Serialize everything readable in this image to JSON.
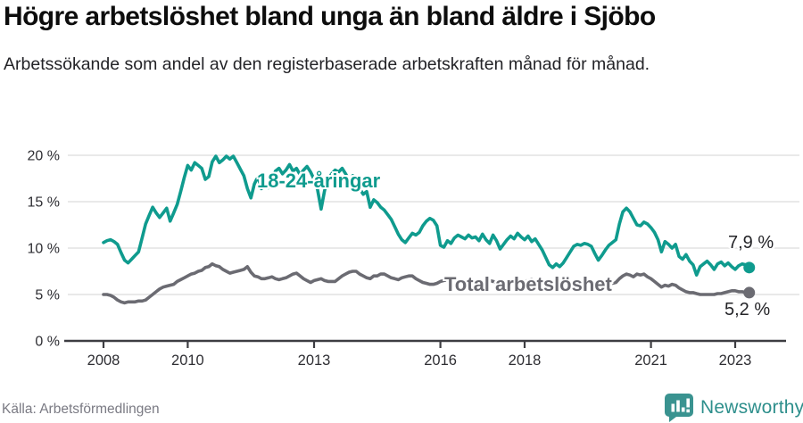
{
  "header": {
    "title": "Högre arbetslöshet bland unga än bland äldre i Sjöbo",
    "subtitle": "Arbetssökande som andel av den registerbaserade arbetskraften månad för månad."
  },
  "footer": {
    "source": "Källa: Arbetsförmedlingen",
    "brand": "Newsworthy"
  },
  "colors": {
    "accent_teal": "#0f9b8e",
    "series_gray": "#6b6b72",
    "brand_teal": "#2e8f8c",
    "grid": "#dcdcdc",
    "axis": "#3d3d42",
    "axis_text": "#2e2e33",
    "end_label_text": "#242428"
  },
  "chart_data": {
    "type": "line",
    "frequency": "monthly",
    "start": "2008-01",
    "end": "2023-05",
    "x_tick_years": [
      2008,
      2010,
      2013,
      2016,
      2018,
      2021,
      2023
    ],
    "x_tick_labels": [
      "2008",
      "2010",
      "2013",
      "2016",
      "2018",
      "2021",
      "2023"
    ],
    "y_ticks": [
      0,
      5,
      10,
      15,
      20
    ],
    "y_tick_labels": [
      "0 %",
      "5 %",
      "10 %",
      "15 %",
      "20 %"
    ],
    "ylim": [
      0,
      21
    ],
    "grid": true,
    "series": [
      {
        "name": "18-24-åringar",
        "color": "#0f9b8e",
        "end_label": "7,9 %",
        "end_value": 7.9,
        "values": [
          10.6,
          10.8,
          10.9,
          10.7,
          10.4,
          9.5,
          8.7,
          8.4,
          8.8,
          9.2,
          9.6,
          11.1,
          12.6,
          13.5,
          14.4,
          13.8,
          13.3,
          13.8,
          14.3,
          12.9,
          13.8,
          14.7,
          16.1,
          17.6,
          18.9,
          18.4,
          19.2,
          18.9,
          18.6,
          17.4,
          17.7,
          19.3,
          19.9,
          19.2,
          19.5,
          19.9,
          19.6,
          19.9,
          19.2,
          18.5,
          17.8,
          16.4,
          15.4,
          16.9,
          17.7,
          16.4,
          17.3,
          16.5,
          17.3,
          18.3,
          18.6,
          18.0,
          18.4,
          19.0,
          18.3,
          18.6,
          17.9,
          18.4,
          18.8,
          18.2,
          17.4,
          16.3,
          14.2,
          16.2,
          17.4,
          18.0,
          18.4,
          18.2,
          18.6,
          18.0,
          17.3,
          17.8,
          17.2,
          16.4,
          15.8,
          16.1,
          14.4,
          15.2,
          14.9,
          14.4,
          14.1,
          13.6,
          13.1,
          12.3,
          11.5,
          10.9,
          10.6,
          11.1,
          11.6,
          11.4,
          11.7,
          12.4,
          12.9,
          13.2,
          13.0,
          12.4,
          10.3,
          10.1,
          10.8,
          10.5,
          11.1,
          11.4,
          11.2,
          11.0,
          11.4,
          11.1,
          11.2,
          10.8,
          11.5,
          10.9,
          10.5,
          11.4,
          10.8,
          9.9,
          10.4,
          10.9,
          11.3,
          11.0,
          11.6,
          11.2,
          10.9,
          11.3,
          10.7,
          11.0,
          10.4,
          9.8,
          9.0,
          8.2,
          7.9,
          8.3,
          8.0,
          8.4,
          9.0,
          9.6,
          10.2,
          10.4,
          10.3,
          10.5,
          10.4,
          10.2,
          9.4,
          8.7,
          9.2,
          9.8,
          10.3,
          10.6,
          10.9,
          12.6,
          13.9,
          14.3,
          13.9,
          13.2,
          12.5,
          12.4,
          12.8,
          12.6,
          12.2,
          11.7,
          10.9,
          9.6,
          10.7,
          10.4,
          10.0,
          10.4,
          9.1,
          8.8,
          9.3,
          8.6,
          8.2,
          7.1,
          8.0,
          8.3,
          8.6,
          8.2,
          7.7,
          8.3,
          8.5,
          8.1,
          8.4,
          8.0,
          7.7,
          8.1,
          8.3,
          8.2,
          7.9
        ]
      },
      {
        "name": "Total arbetslöshet",
        "color": "#6b6b72",
        "end_label": "5,2 %",
        "end_value": 5.2,
        "values": [
          5.0,
          5.0,
          4.9,
          4.7,
          4.4,
          4.2,
          4.1,
          4.2,
          4.2,
          4.2,
          4.3,
          4.3,
          4.4,
          4.7,
          5.0,
          5.3,
          5.6,
          5.8,
          5.9,
          6.0,
          6.1,
          6.4,
          6.6,
          6.8,
          7.0,
          7.2,
          7.3,
          7.5,
          7.6,
          7.9,
          8.0,
          8.3,
          8.1,
          8.0,
          7.7,
          7.5,
          7.3,
          7.4,
          7.5,
          7.6,
          7.7,
          8.0,
          7.4,
          7.0,
          6.9,
          6.7,
          6.7,
          6.8,
          6.9,
          6.7,
          6.6,
          6.7,
          6.8,
          7.0,
          7.2,
          7.3,
          7.0,
          6.7,
          6.5,
          6.3,
          6.5,
          6.6,
          6.7,
          6.5,
          6.4,
          6.4,
          6.4,
          6.7,
          7.0,
          7.2,
          7.4,
          7.5,
          7.5,
          7.2,
          7.0,
          6.8,
          6.7,
          7.0,
          7.0,
          7.2,
          7.2,
          7.0,
          6.8,
          6.7,
          6.6,
          6.8,
          6.9,
          7.0,
          7.0,
          6.7,
          6.5,
          6.3,
          6.2,
          6.1,
          6.1,
          6.2,
          6.4,
          6.5,
          6.6,
          6.4,
          6.2,
          5.9,
          6.0,
          6.2,
          6.2,
          6.4,
          6.3,
          6.2,
          6.2,
          6.4,
          6.5,
          6.4,
          6.3,
          6.0,
          6.1,
          6.3,
          6.3,
          6.4,
          6.6,
          6.5,
          6.4,
          6.5,
          6.6,
          6.4,
          6.3,
          6.0,
          5.9,
          5.8,
          5.7,
          5.7,
          5.8,
          5.8,
          5.9,
          6.0,
          6.1,
          6.2,
          6.2,
          6.1,
          6.1,
          6.0,
          5.9,
          5.9,
          6.0,
          6.0,
          6.1,
          6.2,
          6.3,
          6.7,
          7.0,
          7.2,
          7.1,
          6.9,
          7.2,
          7.1,
          7.2,
          6.9,
          6.7,
          6.4,
          6.1,
          5.8,
          6.0,
          5.9,
          6.1,
          6.0,
          5.7,
          5.5,
          5.3,
          5.2,
          5.2,
          5.1,
          5.0,
          5.0,
          5.0,
          5.0,
          5.0,
          5.1,
          5.1,
          5.2,
          5.3,
          5.4,
          5.4,
          5.3,
          5.3,
          5.2,
          5.2
        ]
      }
    ]
  }
}
